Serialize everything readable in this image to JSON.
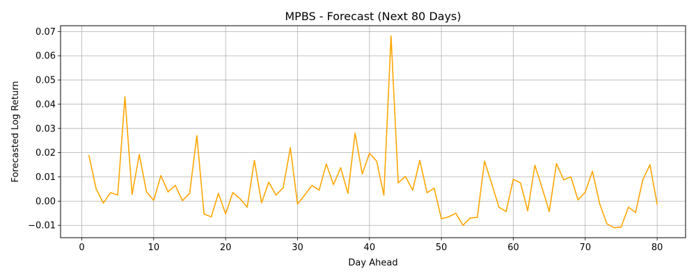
{
  "chart_data": {
    "type": "line",
    "title": "MPBS - Forecast (Next 80 Days)",
    "xlabel": "Day Ahead",
    "ylabel": "Forecasted Log Return",
    "xlim": [
      -2.95,
      83.95
    ],
    "ylim": [
      -0.0151,
      0.0724
    ],
    "x_ticks": [
      0,
      10,
      20,
      30,
      40,
      50,
      60,
      70,
      80
    ],
    "y_ticks": [
      -0.01,
      0.0,
      0.01,
      0.02,
      0.03,
      0.04,
      0.05,
      0.06,
      0.07
    ],
    "y_tick_labels": [
      "−0.01",
      "0.00",
      "0.01",
      "0.02",
      "0.03",
      "0.04",
      "0.05",
      "0.06",
      "0.07"
    ],
    "grid": true,
    "series": [
      {
        "color": "#ffa500",
        "x": [
          1,
          2,
          3,
          4,
          5,
          6,
          7,
          8,
          9,
          10,
          11,
          12,
          13,
          14,
          15,
          16,
          17,
          18,
          19,
          20,
          21,
          22,
          23,
          24,
          25,
          26,
          27,
          28,
          29,
          30,
          31,
          32,
          33,
          34,
          35,
          36,
          37,
          38,
          39,
          40,
          41,
          42,
          43,
          44,
          45,
          46,
          47,
          48,
          49,
          50,
          51,
          52,
          53,
          54,
          55,
          56,
          57,
          58,
          59,
          60,
          61,
          62,
          63,
          64,
          65,
          66,
          67,
          68,
          69,
          70,
          71,
          72,
          73,
          74,
          75,
          76,
          77,
          78,
          79,
          80
        ],
        "values": [
          0.0188,
          0.005,
          -0.0008,
          0.0035,
          0.0025,
          0.043,
          0.0028,
          0.0193,
          0.0038,
          0.0003,
          0.0105,
          0.0038,
          0.0065,
          0.0002,
          0.0032,
          0.027,
          -0.0053,
          -0.0065,
          0.0032,
          -0.0053,
          0.0035,
          0.001,
          -0.0025,
          0.0168,
          -0.0007,
          0.0078,
          0.0025,
          0.0055,
          0.022,
          -0.0012,
          0.0025,
          0.0065,
          0.0045,
          0.0153,
          0.0068,
          0.0138,
          0.0032,
          0.028,
          0.0112,
          0.0198,
          0.0165,
          0.0025,
          0.0682,
          0.0075,
          0.0102,
          0.0045,
          0.0168,
          0.0035,
          0.0053,
          -0.0073,
          -0.0065,
          -0.005,
          -0.01,
          -0.007,
          -0.0067,
          0.0165,
          0.0072,
          -0.0025,
          -0.0043,
          0.009,
          0.0075,
          -0.004,
          0.0148,
          0.0055,
          -0.0043,
          0.0155,
          0.0088,
          0.01,
          0.0005,
          0.0037,
          0.0123,
          -0.001,
          -0.0093,
          -0.011,
          -0.0107,
          -0.0025,
          -0.0047,
          0.0088,
          0.015,
          -0.0013
        ]
      }
    ]
  }
}
